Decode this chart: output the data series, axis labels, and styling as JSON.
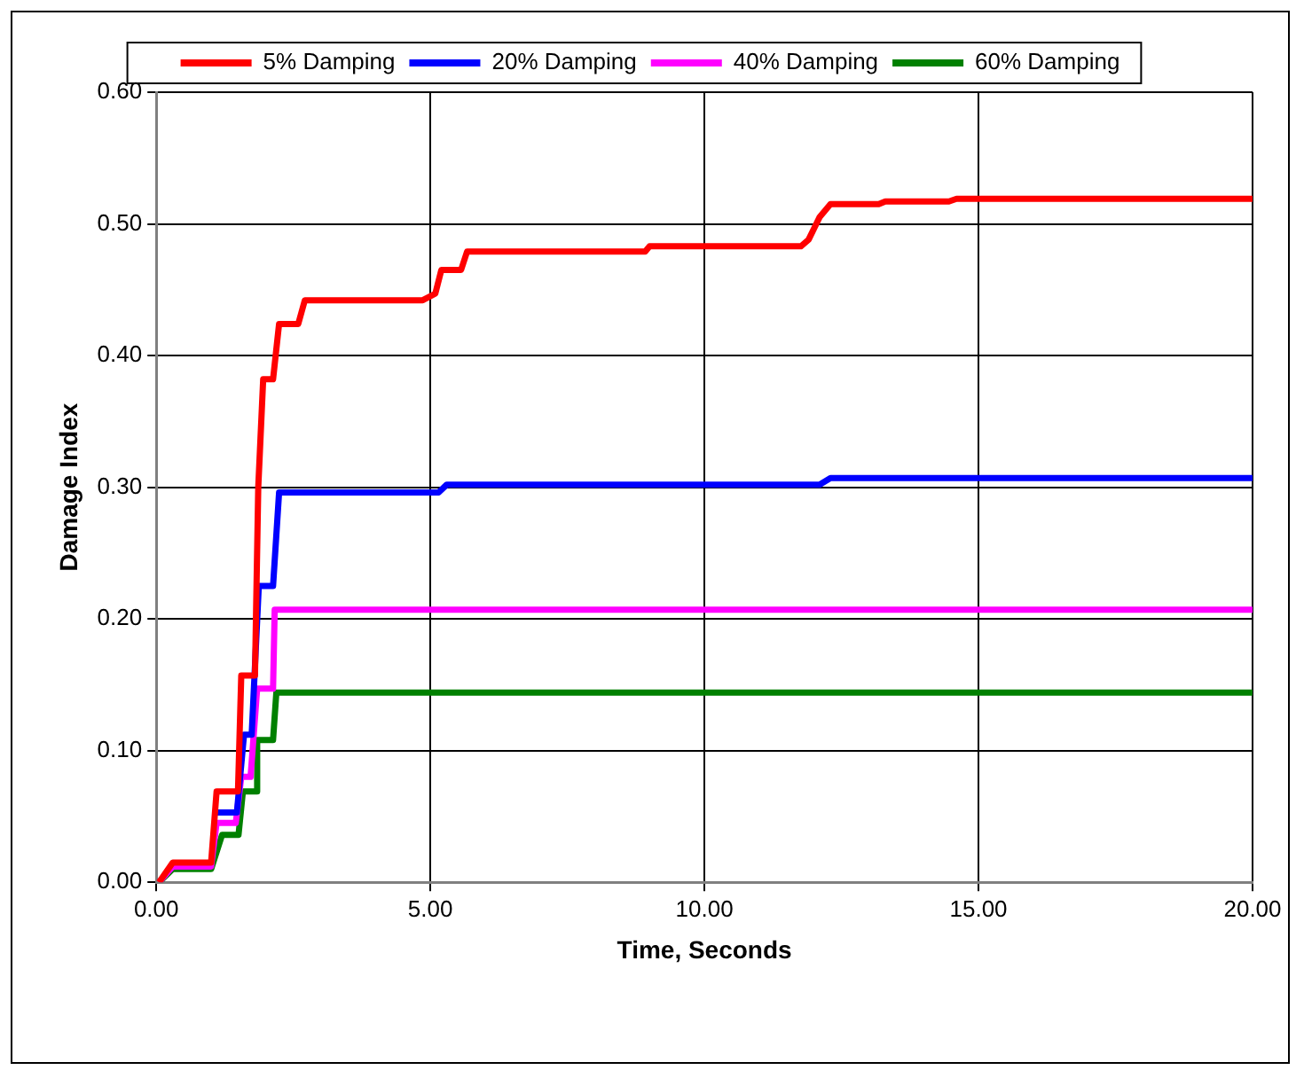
{
  "chart_data": {
    "type": "line",
    "xlabel": "Time, Seconds",
    "ylabel": "Damage Index",
    "xlim": [
      0,
      20
    ],
    "xticks": [
      {
        "value": 0,
        "label": "0.00"
      },
      {
        "value": 5,
        "label": "5.00"
      },
      {
        "value": 10,
        "label": "10.00"
      },
      {
        "value": 15,
        "label": "15.00"
      },
      {
        "value": 20,
        "label": "20.00"
      }
    ],
    "ylim": [
      0,
      0.6
    ],
    "yticks": [
      {
        "value": 0,
        "label": "0.00"
      },
      {
        "value": 0.1,
        "label": "0.10"
      },
      {
        "value": 0.2,
        "label": "0.20"
      },
      {
        "value": 0.3,
        "label": "0.30"
      },
      {
        "value": 0.4,
        "label": "0.40"
      },
      {
        "value": 0.5,
        "label": "0.50"
      },
      {
        "value": 0.6,
        "label": "0.60"
      }
    ],
    "grid": true,
    "legend": "top",
    "marker": "none",
    "line_style": "solid",
    "series": [
      {
        "name": "5% Damping",
        "color": "#ff0000",
        "x": [
          0.05,
          0.3,
          1.0,
          1.1,
          1.49,
          1.55,
          1.74,
          1.8,
          1.86,
          1.95,
          2.13,
          2.24,
          2.59,
          2.71,
          4.86,
          5.09,
          5.2,
          5.56,
          5.67,
          8.92,
          9.0,
          11.76,
          11.9,
          12.1,
          12.3,
          12.47,
          13.18,
          13.3,
          14.46,
          14.6,
          20
        ],
        "values": [
          0,
          0.015,
          0.015,
          0.069,
          0.069,
          0.157,
          0.157,
          0.157,
          0.3,
          0.382,
          0.382,
          0.424,
          0.424,
          0.442,
          0.442,
          0.447,
          0.465,
          0.465,
          0.479,
          0.479,
          0.483,
          0.483,
          0.488,
          0.505,
          0.515,
          0.515,
          0.515,
          0.517,
          0.517,
          0.519,
          0.519
        ]
      },
      {
        "name": "20% Damping",
        "color": "#0000ff",
        "x": [
          1.1,
          1.47,
          1.6,
          1.74,
          1.87,
          1.9,
          2.13,
          2.24,
          5.15,
          5.3,
          12.1,
          12.3,
          20
        ],
        "values": [
          0.053,
          0.053,
          0.112,
          0.112,
          0.225,
          0.225,
          0.225,
          0.296,
          0.296,
          0.302,
          0.302,
          0.307,
          0.307
        ]
      },
      {
        "name": "40% Damping",
        "color": "#ff00ff",
        "x": [
          0.05,
          0.3,
          1.0,
          1.1,
          1.45,
          1.55,
          1.72,
          1.84,
          2.13,
          2.16,
          20
        ],
        "values": [
          0,
          0.012,
          0.012,
          0.045,
          0.045,
          0.08,
          0.08,
          0.147,
          0.147,
          0.207,
          0.207
        ]
      },
      {
        "name": "60% Damping",
        "color": "#008000",
        "x": [
          0.05,
          0.3,
          1.0,
          1.2,
          1.5,
          1.58,
          1.81,
          1.84,
          2.13,
          2.19,
          20
        ],
        "values": [
          0,
          0.01,
          0.01,
          0.036,
          0.036,
          0.069,
          0.069,
          0.108,
          0.108,
          0.144,
          0.144
        ]
      }
    ]
  }
}
